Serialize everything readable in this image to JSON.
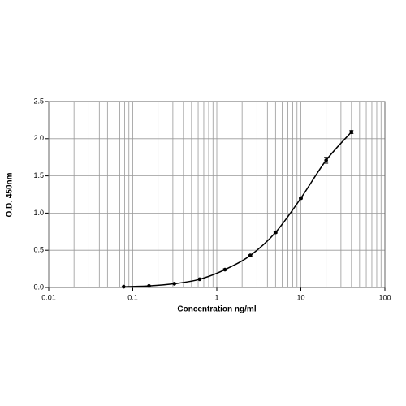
{
  "chart_data": {
    "type": "scatter",
    "x_label": "Concentration ng/ml",
    "y_label": "O.D. 450nm",
    "x": [
      0.078,
      0.156,
      0.3125,
      0.625,
      1.25,
      2.5,
      5,
      10,
      20,
      40
    ],
    "values": [
      0.01,
      0.02,
      0.05,
      0.11,
      0.24,
      0.43,
      0.74,
      1.2,
      1.71,
      2.09
    ],
    "errors": [
      0,
      0,
      0,
      0,
      0.01,
      0.01,
      0.01,
      0.01,
      0.04,
      0.02
    ],
    "color": "#000000",
    "fit_line": true,
    "x_log": true,
    "xlim": [
      0.01,
      100
    ],
    "xticks": [
      0.01,
      0.1,
      1,
      10,
      100
    ],
    "ylim": [
      0,
      2.5
    ],
    "yticks": [
      {
        "value": 0,
        "label": "0.0"
      },
      0.5,
      {
        "value": 1,
        "label": "1.0"
      },
      1.5,
      {
        "value": 2,
        "label": "2.0"
      },
      2.5
    ],
    "grid": true
  }
}
